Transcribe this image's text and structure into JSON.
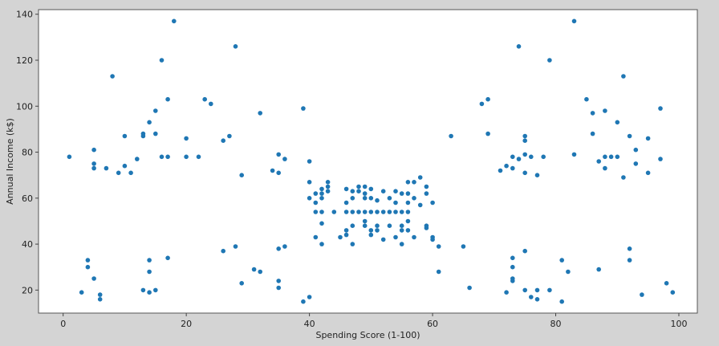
{
  "chart_data": {
    "type": "scatter",
    "title": "",
    "xlabel": "Spending Score (1-100)",
    "ylabel": "Annual Income (k$)",
    "xlim": [
      -4,
      103
    ],
    "ylim": [
      10,
      142
    ],
    "xticks": [
      0,
      20,
      40,
      60,
      80,
      100
    ],
    "yticks": [
      20,
      40,
      60,
      80,
      100,
      120,
      140
    ],
    "grid": false,
    "point_color": "#1f77b4",
    "series": [
      {
        "points": [
          [
            1,
            78
          ],
          [
            3,
            19
          ],
          [
            4,
            33
          ],
          [
            4,
            30
          ],
          [
            5,
            25
          ],
          [
            5,
            81
          ],
          [
            5,
            75
          ],
          [
            5,
            73
          ],
          [
            6,
            18
          ],
          [
            6,
            16
          ],
          [
            7,
            73
          ],
          [
            8,
            113
          ],
          [
            9,
            71
          ],
          [
            10,
            87
          ],
          [
            10,
            74
          ],
          [
            11,
            71
          ],
          [
            12,
            77
          ],
          [
            13,
            87
          ],
          [
            13,
            88
          ],
          [
            13,
            20
          ],
          [
            14,
            93
          ],
          [
            14,
            33
          ],
          [
            14,
            28
          ],
          [
            14,
            19
          ],
          [
            15,
            98
          ],
          [
            15,
            88
          ],
          [
            15,
            20
          ],
          [
            16,
            120
          ],
          [
            16,
            78
          ],
          [
            17,
            103
          ],
          [
            17,
            78
          ],
          [
            17,
            34
          ],
          [
            18,
            137
          ],
          [
            20,
            86
          ],
          [
            20,
            78
          ],
          [
            22,
            78
          ],
          [
            23,
            103
          ],
          [
            24,
            101
          ],
          [
            26,
            85
          ],
          [
            26,
            37
          ],
          [
            27,
            87
          ],
          [
            28,
            126
          ],
          [
            28,
            39
          ],
          [
            29,
            70
          ],
          [
            29,
            23
          ],
          [
            31,
            29
          ],
          [
            32,
            97
          ],
          [
            32,
            28
          ],
          [
            34,
            72
          ],
          [
            35,
            79
          ],
          [
            35,
            71
          ],
          [
            35,
            38
          ],
          [
            35,
            24
          ],
          [
            35,
            21
          ],
          [
            36,
            77
          ],
          [
            36,
            39
          ],
          [
            39,
            99
          ],
          [
            39,
            15
          ],
          [
            40,
            76
          ],
          [
            40,
            17
          ],
          [
            40,
            60
          ],
          [
            40,
            67
          ],
          [
            41,
            62
          ],
          [
            41,
            58
          ],
          [
            41,
            54
          ],
          [
            41,
            43
          ],
          [
            42,
            64
          ],
          [
            42,
            62
          ],
          [
            42,
            60
          ],
          [
            42,
            54
          ],
          [
            42,
            49
          ],
          [
            42,
            40
          ],
          [
            43,
            67
          ],
          [
            43,
            65
          ],
          [
            43,
            63
          ],
          [
            44,
            54
          ],
          [
            45,
            43
          ],
          [
            46,
            64
          ],
          [
            46,
            58
          ],
          [
            46,
            54
          ],
          [
            46,
            46
          ],
          [
            46,
            44
          ],
          [
            47,
            63
          ],
          [
            47,
            60
          ],
          [
            47,
            54
          ],
          [
            47,
            48
          ],
          [
            47,
            40
          ],
          [
            48,
            65
          ],
          [
            48,
            63
          ],
          [
            48,
            54
          ],
          [
            49,
            65
          ],
          [
            49,
            62
          ],
          [
            49,
            60
          ],
          [
            49,
            54
          ],
          [
            49,
            48
          ],
          [
            49,
            50
          ],
          [
            50,
            64
          ],
          [
            50,
            60
          ],
          [
            50,
            54
          ],
          [
            50,
            46
          ],
          [
            50,
            44
          ],
          [
            51,
            59
          ],
          [
            51,
            54
          ],
          [
            51,
            48
          ],
          [
            51,
            46
          ],
          [
            52,
            63
          ],
          [
            52,
            54
          ],
          [
            52,
            42
          ],
          [
            53,
            60
          ],
          [
            53,
            54
          ],
          [
            53,
            48
          ],
          [
            54,
            63
          ],
          [
            54,
            58
          ],
          [
            54,
            54
          ],
          [
            54,
            43
          ],
          [
            55,
            62
          ],
          [
            55,
            54
          ],
          [
            55,
            48
          ],
          [
            55,
            46
          ],
          [
            55,
            40
          ],
          [
            56,
            67
          ],
          [
            56,
            62
          ],
          [
            56,
            58
          ],
          [
            56,
            54
          ],
          [
            56,
            50
          ],
          [
            56,
            46
          ],
          [
            57,
            67
          ],
          [
            57,
            60
          ],
          [
            57,
            43
          ],
          [
            58,
            69
          ],
          [
            58,
            57
          ],
          [
            59,
            65
          ],
          [
            59,
            62
          ],
          [
            59,
            48
          ],
          [
            59,
            47
          ],
          [
            60,
            58
          ],
          [
            60,
            43
          ],
          [
            60,
            42
          ],
          [
            61,
            39
          ],
          [
            61,
            28
          ],
          [
            63,
            87
          ],
          [
            65,
            39
          ],
          [
            66,
            21
          ],
          [
            68,
            101
          ],
          [
            69,
            103
          ],
          [
            69,
            88
          ],
          [
            71,
            72
          ],
          [
            72,
            74
          ],
          [
            72,
            19
          ],
          [
            73,
            78
          ],
          [
            73,
            73
          ],
          [
            73,
            34
          ],
          [
            73,
            30
          ],
          [
            73,
            25
          ],
          [
            73,
            24
          ],
          [
            74,
            126
          ],
          [
            74,
            77
          ],
          [
            75,
            87
          ],
          [
            75,
            85
          ],
          [
            75,
            79
          ],
          [
            75,
            71
          ],
          [
            75,
            37
          ],
          [
            75,
            20
          ],
          [
            76,
            78
          ],
          [
            76,
            17
          ],
          [
            77,
            70
          ],
          [
            77,
            20
          ],
          [
            77,
            16
          ],
          [
            78,
            78
          ],
          [
            79,
            120
          ],
          [
            79,
            20
          ],
          [
            81,
            33
          ],
          [
            81,
            15
          ],
          [
            82,
            28
          ],
          [
            83,
            137
          ],
          [
            83,
            79
          ],
          [
            85,
            103
          ],
          [
            86,
            97
          ],
          [
            86,
            88
          ],
          [
            87,
            76
          ],
          [
            87,
            29
          ],
          [
            88,
            98
          ],
          [
            88,
            78
          ],
          [
            88,
            73
          ],
          [
            89,
            78
          ],
          [
            90,
            93
          ],
          [
            90,
            78
          ],
          [
            91,
            113
          ],
          [
            91,
            69
          ],
          [
            92,
            87
          ],
          [
            92,
            38
          ],
          [
            92,
            33
          ],
          [
            93,
            81
          ],
          [
            93,
            75
          ],
          [
            94,
            18
          ],
          [
            95,
            86
          ],
          [
            95,
            71
          ],
          [
            97,
            99
          ],
          [
            97,
            77
          ],
          [
            98,
            23
          ],
          [
            99,
            19
          ]
        ]
      }
    ]
  }
}
